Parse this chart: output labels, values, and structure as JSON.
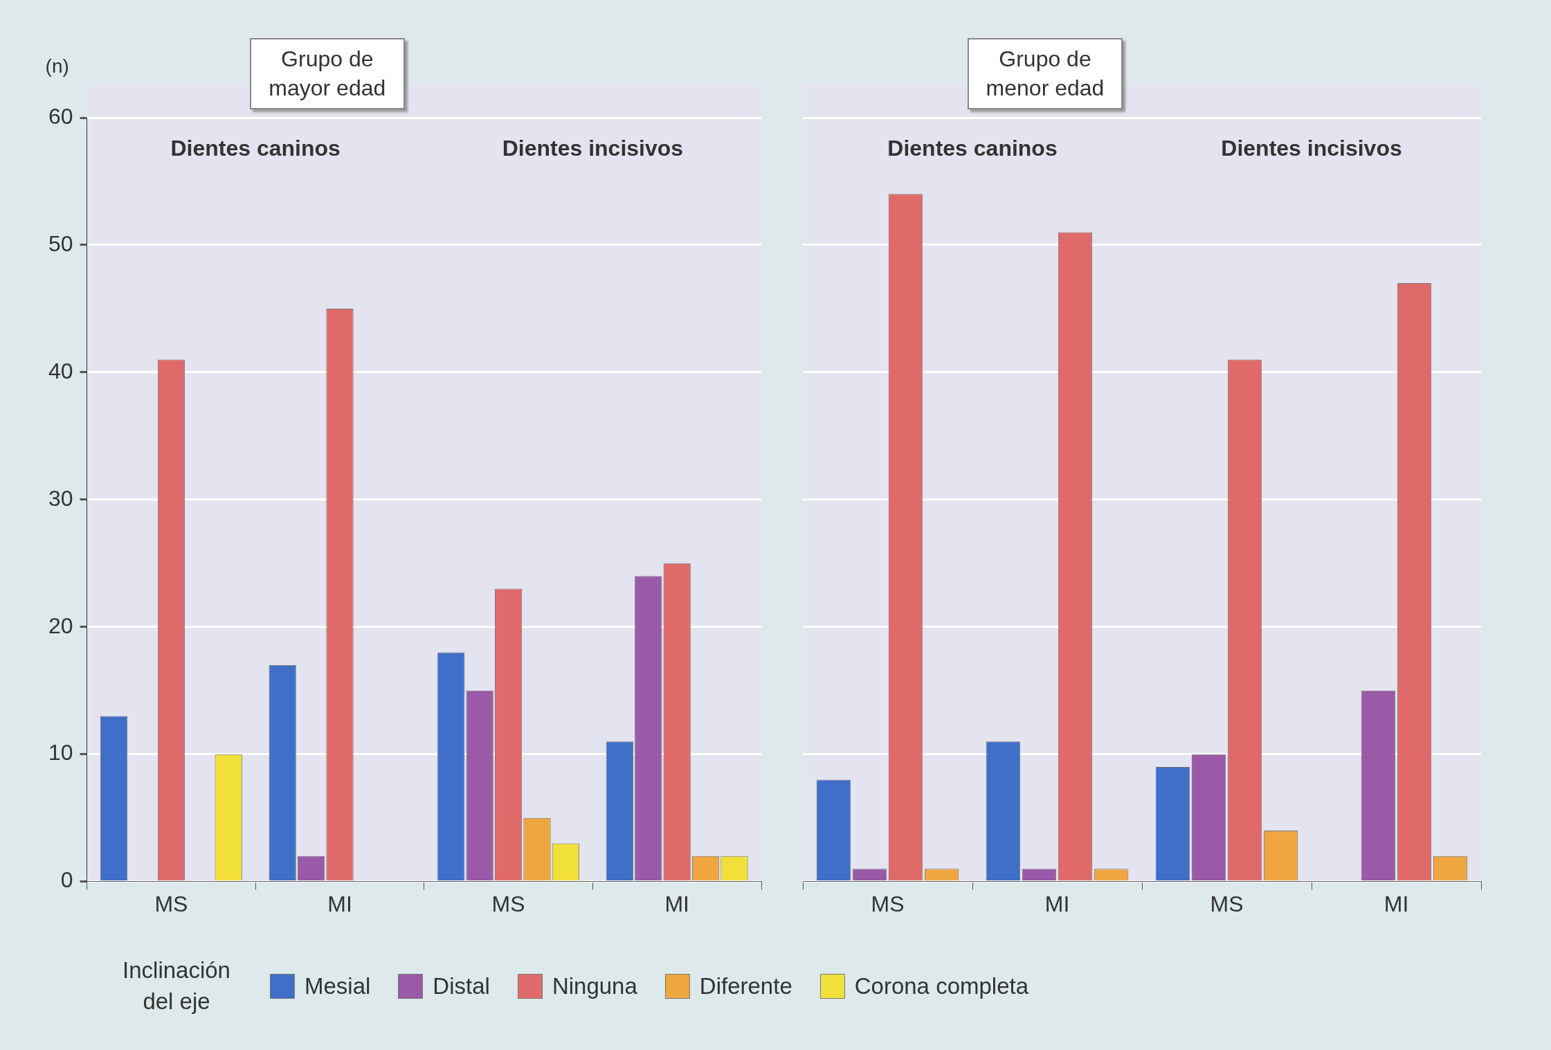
{
  "chart_data": [
    {
      "type": "bar",
      "title": "Grupo de mayor edad",
      "ylabel": "(n)",
      "categories": [
        "MS",
        "MI",
        "MS",
        "MI"
      ],
      "annotations": [
        "Dientes caninos",
        "Dientes incisivos"
      ],
      "series": [
        {
          "name": "Mesial",
          "color": "#3f6fc8",
          "values": [
            13,
            17,
            18,
            11
          ]
        },
        {
          "name": "Distal",
          "color": "#9a5aa8",
          "values": [
            null,
            2,
            15,
            24
          ]
        },
        {
          "name": "Ninguna",
          "color": "#e06a6a",
          "values": [
            41,
            45,
            23,
            25
          ]
        },
        {
          "name": "Diferente",
          "color": "#f0a640",
          "values": [
            null,
            null,
            5,
            2
          ]
        },
        {
          "name": "Corona completa",
          "color": "#f2e03a",
          "values": [
            10,
            null,
            3,
            2
          ]
        }
      ],
      "ylim": [
        0,
        60
      ],
      "yticks": [
        0,
        10,
        20,
        30,
        40,
        50,
        60
      ],
      "grid": "y",
      "legend": "bottom",
      "legend_title": "Inclinación del eje"
    },
    {
      "type": "bar",
      "title": "Grupo de menor edad",
      "categories": [
        "MS",
        "MI",
        "MS",
        "MI"
      ],
      "annotations": [
        "Dientes caninos",
        "Dientes incisivos"
      ],
      "series": [
        {
          "color": "#3f6fc8",
          "values": [
            8,
            11,
            9,
            null
          ]
        },
        {
          "color": "#9a5aa8",
          "values": [
            1,
            1,
            10,
            15
          ]
        },
        {
          "color": "#e06a6a",
          "values": [
            54,
            51,
            41,
            47
          ]
        },
        {
          "color": "#f0a640",
          "values": [
            1,
            1,
            4,
            2
          ]
        }
      ],
      "ylim": [
        0,
        60
      ],
      "yticks": [
        0,
        10,
        20,
        30,
        40,
        50,
        60
      ],
      "grid": "y",
      "tick_labels": "x"
    }
  ]
}
